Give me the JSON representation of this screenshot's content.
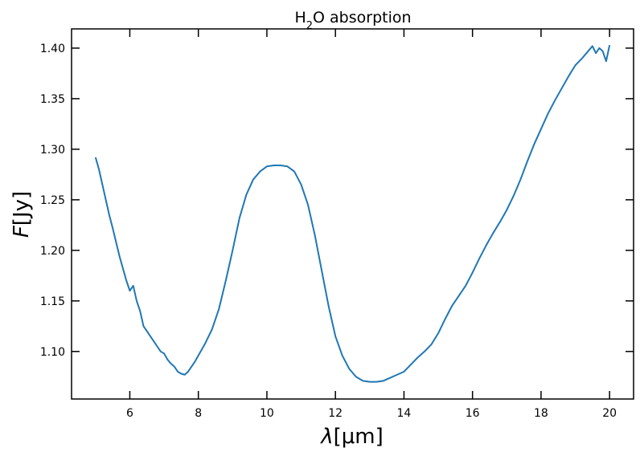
{
  "chart_data": {
    "type": "line",
    "title_main": "H",
    "title_sub": "2",
    "title_rest": "O absorption",
    "xlabel_symbol": "λ",
    "xlabel_unit": "[μm]",
    "ylabel_symbol": "F",
    "ylabel_unit": "[Jy]",
    "xlim": [
      4.3,
      20.7
    ],
    "ylim": [
      1.053,
      1.419
    ],
    "xticks": [
      6,
      8,
      10,
      12,
      14,
      16,
      18,
      20
    ],
    "xtick_labels": [
      "6",
      "8",
      "10",
      "12",
      "14",
      "16",
      "18",
      "20"
    ],
    "yticks": [
      1.1,
      1.15,
      1.2,
      1.25,
      1.3,
      1.35,
      1.4
    ],
    "ytick_labels": [
      "1.10",
      "1.15",
      "1.20",
      "1.25",
      "1.30",
      "1.35",
      "1.40"
    ],
    "grid": false,
    "line_color": "#1f77b4",
    "series": [
      {
        "x": [
          5.0,
          5.1,
          5.2,
          5.3,
          5.4,
          5.5,
          5.6,
          5.7,
          5.8,
          5.9,
          6.0,
          6.1,
          6.2,
          6.3,
          6.4,
          6.5,
          6.6,
          6.7,
          6.8,
          6.9,
          7.0,
          7.1,
          7.2,
          7.3,
          7.4,
          7.5,
          7.6,
          7.7,
          7.8,
          7.9,
          8.0,
          8.2,
          8.4,
          8.6,
          8.8,
          9.0,
          9.2,
          9.4,
          9.6,
          9.8,
          10.0,
          10.2,
          10.4,
          10.6,
          10.8,
          11.0,
          11.2,
          11.4,
          11.6,
          11.8,
          12.0,
          12.2,
          12.4,
          12.6,
          12.8,
          13.0,
          13.2,
          13.4,
          13.6,
          13.8,
          14.0,
          14.2,
          14.4,
          14.6,
          14.8,
          15.0,
          15.2,
          15.4,
          15.6,
          15.8,
          16.0,
          16.2,
          16.4,
          16.6,
          16.8,
          17.0,
          17.2,
          17.4,
          17.6,
          17.8,
          18.0,
          18.2,
          18.4,
          18.6,
          18.8,
          19.0,
          19.2,
          19.4,
          19.5,
          19.6,
          19.7,
          19.8,
          19.9,
          20.0
        ],
        "y": [
          1.292,
          1.28,
          1.265,
          1.25,
          1.235,
          1.222,
          1.208,
          1.194,
          1.182,
          1.17,
          1.16,
          1.165,
          1.15,
          1.14,
          1.125,
          1.12,
          1.115,
          1.11,
          1.105,
          1.1,
          1.098,
          1.092,
          1.088,
          1.085,
          1.08,
          1.078,
          1.077,
          1.08,
          1.085,
          1.09,
          1.096,
          1.108,
          1.122,
          1.142,
          1.17,
          1.2,
          1.232,
          1.255,
          1.27,
          1.278,
          1.283,
          1.284,
          1.284,
          1.283,
          1.278,
          1.265,
          1.245,
          1.215,
          1.18,
          1.145,
          1.115,
          1.096,
          1.083,
          1.075,
          1.071,
          1.07,
          1.07,
          1.071,
          1.074,
          1.077,
          1.08,
          1.087,
          1.094,
          1.1,
          1.107,
          1.118,
          1.132,
          1.145,
          1.155,
          1.165,
          1.178,
          1.192,
          1.205,
          1.217,
          1.228,
          1.24,
          1.254,
          1.27,
          1.288,
          1.305,
          1.32,
          1.335,
          1.348,
          1.36,
          1.372,
          1.383,
          1.39,
          1.398,
          1.402,
          1.395,
          1.4,
          1.397,
          1.387,
          1.403
        ]
      }
    ]
  }
}
